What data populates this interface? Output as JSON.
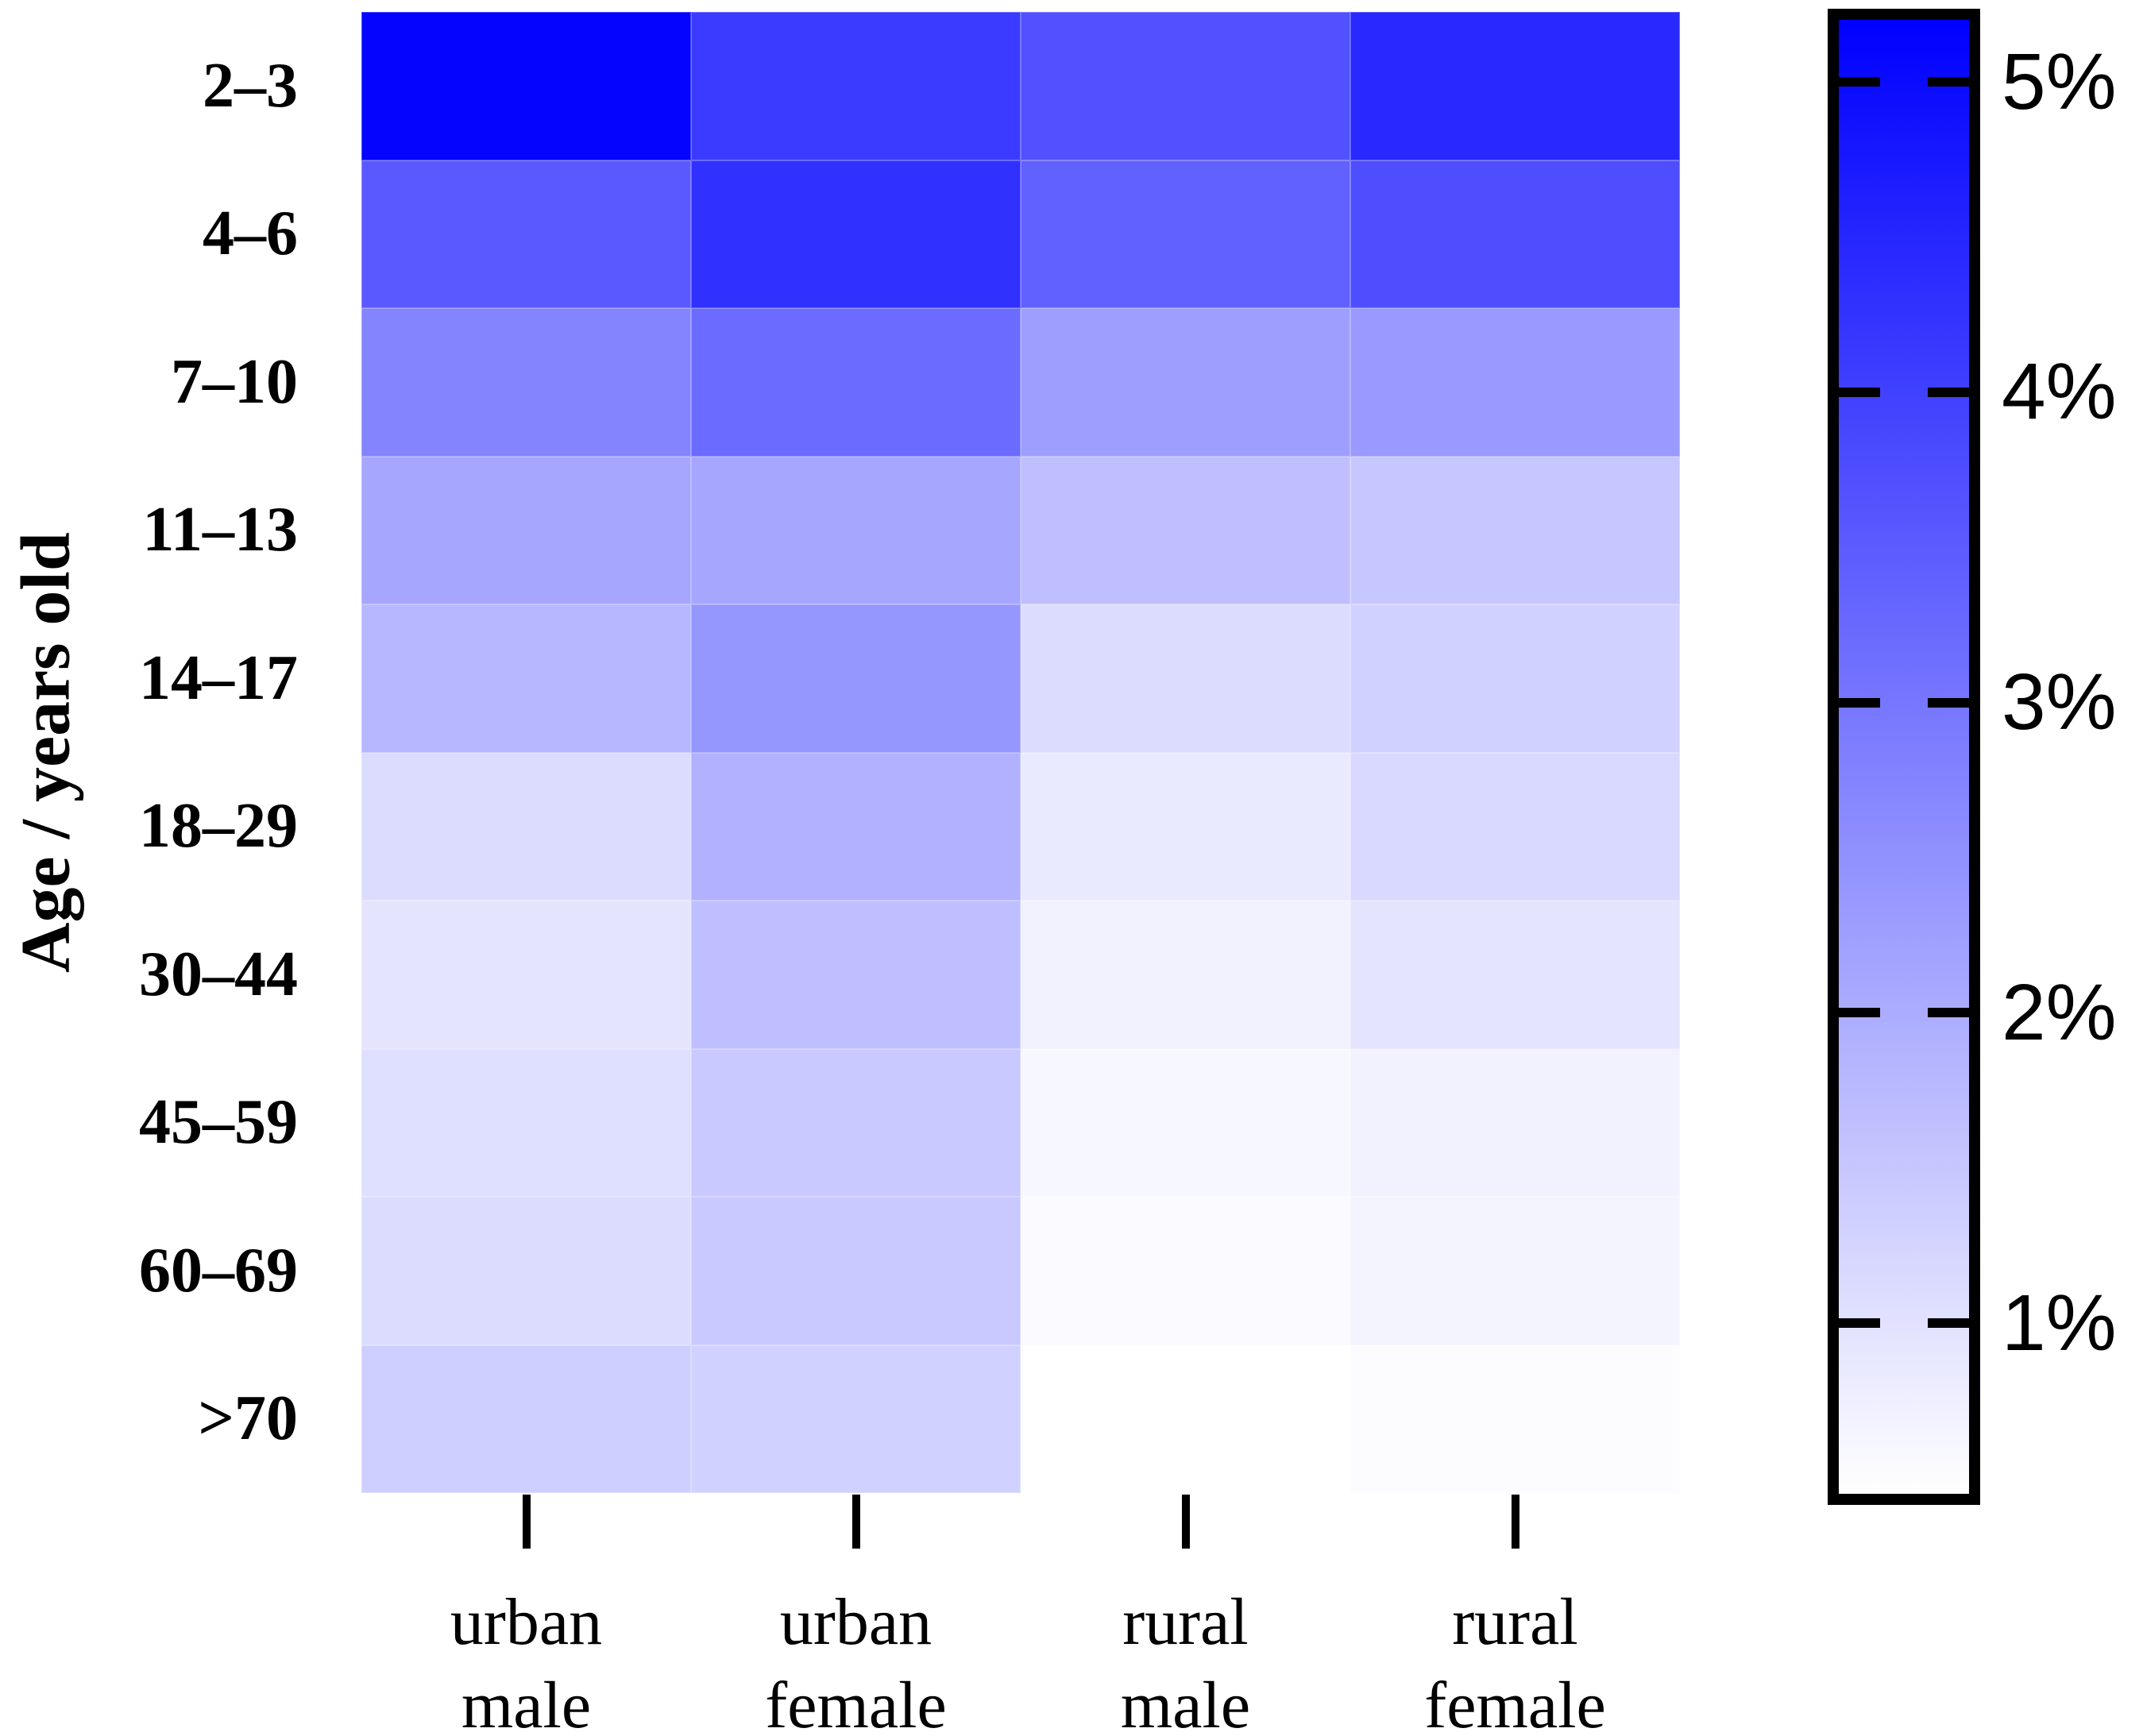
{
  "figure": {
    "background_color": "#FFFFFF",
    "accent_color": "#0000FF",
    "y_axis": {
      "title": "Age / years old",
      "tick_labels": [
        "2–3",
        "4–6",
        "7–10",
        "11–13",
        "14–17",
        "18–29",
        "30–44",
        "45–59",
        "60–69",
        ">70"
      ]
    },
    "x_axis": {
      "tick_labels_two_line": [
        [
          "urban",
          "male"
        ],
        [
          "urban",
          "female"
        ],
        [
          "rural",
          "male"
        ],
        [
          "rural",
          "female"
        ]
      ]
    },
    "colorbar": {
      "tick_labels": [
        "5%",
        "4%",
        "3%",
        "2%",
        "1%"
      ],
      "tick_values_percent": [
        5,
        4,
        3,
        2,
        1
      ],
      "top_color": "#0000FF",
      "bottom_color": "#FFFFFF",
      "vmin_percent": 0.45,
      "vmax_percent": 5.2
    }
  },
  "chart_data": {
    "type": "heatmap",
    "title": "",
    "xlabel": "",
    "ylabel": "Age / years old",
    "rows": [
      "2–3",
      "4–6",
      "7–10",
      "11–13",
      "14–17",
      "18–29",
      "30–44",
      "45–59",
      "60–69",
      ">70"
    ],
    "columns": [
      "urban male",
      "urban female",
      "rural male",
      "rural female"
    ],
    "values_percent": [
      [
        5.1,
        4.1,
        3.7,
        4.45
      ],
      [
        3.55,
        4.3,
        3.4,
        3.75
      ],
      [
        2.75,
        3.2,
        2.25,
        2.35
      ],
      [
        2.1,
        2.1,
        1.65,
        1.5
      ],
      [
        1.8,
        2.4,
        1.1,
        1.3
      ],
      [
        1.1,
        1.9,
        0.85,
        1.15
      ],
      [
        0.95,
        1.65,
        0.7,
        0.95
      ],
      [
        1.05,
        1.45,
        0.6,
        0.7
      ],
      [
        1.1,
        1.45,
        0.55,
        0.65
      ],
      [
        1.35,
        1.3,
        0.4,
        0.5
      ]
    ],
    "colormap": {
      "type": "linear",
      "low_color": "#FFFFFF",
      "high_color": "#0000FF",
      "vmin_percent": 0.45,
      "vmax_percent": 5.2
    },
    "legend_position": "colorbar-right",
    "grid": false
  }
}
